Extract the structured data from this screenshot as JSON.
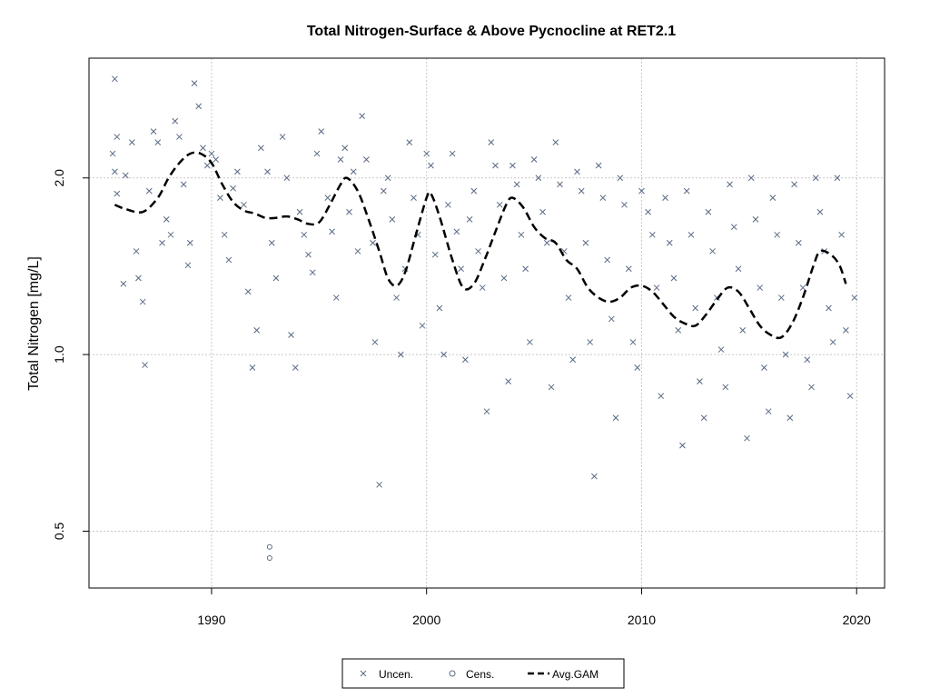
{
  "chart_data": {
    "type": "scatter",
    "title": "Total Nitrogen-Surface & Above Pycnocline at RET2.1",
    "xlabel": "",
    "ylabel": "Total Nitrogen [mg/L]",
    "xlim": [
      1984.3,
      2021.3
    ],
    "ylim": [
      0.4,
      3.2
    ],
    "y_scale": "log",
    "grid": true,
    "x_ticks": [
      {
        "value": 1990,
        "label": "1990"
      },
      {
        "value": 2000,
        "label": "2000"
      },
      {
        "value": 2010,
        "label": "2010"
      },
      {
        "value": 2020,
        "label": "2020"
      }
    ],
    "y_ticks": [
      {
        "value": 0.5,
        "label": "0.5"
      },
      {
        "value": 1.0,
        "label": "1.0"
      },
      {
        "value": 2.0,
        "label": "2.0"
      }
    ],
    "legend": {
      "placement": "bottom-center",
      "entries": [
        {
          "label": "Uncen.",
          "symbol": "x"
        },
        {
          "label": "Cens.",
          "symbol": "o"
        },
        {
          "label": "Avg.GAM",
          "symbol": "dashed-line"
        }
      ]
    },
    "colors": {
      "points": "#5a6a84",
      "gam": "#000000",
      "grid": "#c8c8c8"
    },
    "series": [
      {
        "name": "Uncen.",
        "points": [
          [
            1985.5,
            2.95
          ],
          [
            1985.6,
            2.35
          ],
          [
            1985.4,
            2.2
          ],
          [
            1985.5,
            2.05
          ],
          [
            1985.6,
            1.88
          ],
          [
            1985.9,
            1.32
          ],
          [
            1986.0,
            2.02
          ],
          [
            1986.3,
            2.3
          ],
          [
            1986.5,
            1.5
          ],
          [
            1986.6,
            1.35
          ],
          [
            1986.8,
            1.23
          ],
          [
            1986.9,
            0.96
          ],
          [
            1987.1,
            1.9
          ],
          [
            1987.3,
            2.4
          ],
          [
            1987.5,
            2.3
          ],
          [
            1987.7,
            1.55
          ],
          [
            1987.9,
            1.7
          ],
          [
            1988.1,
            1.6
          ],
          [
            1988.3,
            2.5
          ],
          [
            1988.5,
            2.35
          ],
          [
            1988.7,
            1.95
          ],
          [
            1988.9,
            1.42
          ],
          [
            1989.0,
            1.55
          ],
          [
            1989.2,
            2.9
          ],
          [
            1989.4,
            2.65
          ],
          [
            1989.6,
            2.25
          ],
          [
            1989.8,
            2.1
          ],
          [
            1990.0,
            2.2
          ],
          [
            1990.2,
            2.15
          ],
          [
            1990.4,
            1.85
          ],
          [
            1990.6,
            1.6
          ],
          [
            1990.8,
            1.45
          ],
          [
            1991.0,
            1.92
          ],
          [
            1991.2,
            2.05
          ],
          [
            1991.5,
            1.8
          ],
          [
            1991.7,
            1.28
          ],
          [
            1991.9,
            0.95
          ],
          [
            1992.1,
            1.1
          ],
          [
            1992.3,
            2.25
          ],
          [
            1992.6,
            2.05
          ],
          [
            1992.8,
            1.55
          ],
          [
            1993.0,
            1.35
          ],
          [
            1993.3,
            2.35
          ],
          [
            1993.5,
            2.0
          ],
          [
            1993.7,
            1.08
          ],
          [
            1993.9,
            0.95
          ],
          [
            1994.1,
            1.75
          ],
          [
            1994.3,
            1.6
          ],
          [
            1994.5,
            1.48
          ],
          [
            1994.7,
            1.38
          ],
          [
            1994.9,
            2.2
          ],
          [
            1995.1,
            2.4
          ],
          [
            1995.4,
            1.85
          ],
          [
            1995.6,
            1.62
          ],
          [
            1995.8,
            1.25
          ],
          [
            1996.0,
            2.15
          ],
          [
            1996.2,
            2.25
          ],
          [
            1996.4,
            1.75
          ],
          [
            1996.6,
            2.05
          ],
          [
            1996.8,
            1.5
          ],
          [
            1997.0,
            2.55
          ],
          [
            1997.2,
            2.15
          ],
          [
            1997.5,
            1.55
          ],
          [
            1997.6,
            1.05
          ],
          [
            1997.8,
            0.6
          ],
          [
            1998.0,
            1.9
          ],
          [
            1998.2,
            2.0
          ],
          [
            1998.4,
            1.7
          ],
          [
            1998.6,
            1.25
          ],
          [
            1998.8,
            1.0
          ],
          [
            1999.0,
            1.4
          ],
          [
            1999.2,
            2.3
          ],
          [
            1999.4,
            1.85
          ],
          [
            1999.6,
            1.6
          ],
          [
            1999.8,
            1.12
          ],
          [
            2000.0,
            2.2
          ],
          [
            2000.2,
            2.1
          ],
          [
            2000.4,
            1.48
          ],
          [
            2000.6,
            1.2
          ],
          [
            2000.8,
            1.0
          ],
          [
            2001.0,
            1.8
          ],
          [
            2001.2,
            2.2
          ],
          [
            2001.4,
            1.62
          ],
          [
            2001.6,
            1.4
          ],
          [
            2001.8,
            0.98
          ],
          [
            2002.0,
            1.7
          ],
          [
            2002.2,
            1.9
          ],
          [
            2002.4,
            1.5
          ],
          [
            2002.6,
            1.3
          ],
          [
            2002.8,
            0.8
          ],
          [
            2003.0,
            2.3
          ],
          [
            2003.2,
            2.1
          ],
          [
            2003.4,
            1.8
          ],
          [
            2003.6,
            1.35
          ],
          [
            2003.8,
            0.9
          ],
          [
            2004.0,
            2.1
          ],
          [
            2004.2,
            1.95
          ],
          [
            2004.4,
            1.6
          ],
          [
            2004.6,
            1.4
          ],
          [
            2004.8,
            1.05
          ],
          [
            2005.0,
            2.15
          ],
          [
            2005.2,
            2.0
          ],
          [
            2005.4,
            1.75
          ],
          [
            2005.6,
            1.55
          ],
          [
            2005.8,
            0.88
          ],
          [
            2006.0,
            2.3
          ],
          [
            2006.2,
            1.95
          ],
          [
            2006.4,
            1.5
          ],
          [
            2006.6,
            1.25
          ],
          [
            2006.8,
            0.98
          ],
          [
            2007.0,
            2.05
          ],
          [
            2007.2,
            1.9
          ],
          [
            2007.4,
            1.55
          ],
          [
            2007.6,
            1.05
          ],
          [
            2007.8,
            0.62
          ],
          [
            2008.0,
            2.1
          ],
          [
            2008.2,
            1.85
          ],
          [
            2008.4,
            1.45
          ],
          [
            2008.6,
            1.15
          ],
          [
            2008.8,
            0.78
          ],
          [
            2009.0,
            2.0
          ],
          [
            2009.2,
            1.8
          ],
          [
            2009.4,
            1.4
          ],
          [
            2009.6,
            1.05
          ],
          [
            2009.8,
            0.95
          ],
          [
            2010.0,
            1.9
          ],
          [
            2010.3,
            1.75
          ],
          [
            2010.5,
            1.6
          ],
          [
            2010.7,
            1.3
          ],
          [
            2010.9,
            0.85
          ],
          [
            2011.1,
            1.85
          ],
          [
            2011.3,
            1.55
          ],
          [
            2011.5,
            1.35
          ],
          [
            2011.7,
            1.1
          ],
          [
            2011.9,
            0.7
          ],
          [
            2012.1,
            1.9
          ],
          [
            2012.3,
            1.6
          ],
          [
            2012.5,
            1.2
          ],
          [
            2012.7,
            0.9
          ],
          [
            2012.9,
            0.78
          ],
          [
            2013.1,
            1.75
          ],
          [
            2013.3,
            1.5
          ],
          [
            2013.5,
            1.25
          ],
          [
            2013.7,
            1.02
          ],
          [
            2013.9,
            0.88
          ],
          [
            2014.1,
            1.95
          ],
          [
            2014.3,
            1.65
          ],
          [
            2014.5,
            1.4
          ],
          [
            2014.7,
            1.1
          ],
          [
            2014.9,
            0.72
          ],
          [
            2015.1,
            2.0
          ],
          [
            2015.3,
            1.7
          ],
          [
            2015.5,
            1.3
          ],
          [
            2015.7,
            0.95
          ],
          [
            2015.9,
            0.8
          ],
          [
            2016.1,
            1.85
          ],
          [
            2016.3,
            1.6
          ],
          [
            2016.5,
            1.25
          ],
          [
            2016.7,
            1.0
          ],
          [
            2016.9,
            0.78
          ],
          [
            2017.1,
            1.95
          ],
          [
            2017.3,
            1.55
          ],
          [
            2017.5,
            1.3
          ],
          [
            2017.7,
            0.98
          ],
          [
            2017.9,
            0.88
          ],
          [
            2018.1,
            2.0
          ],
          [
            2018.3,
            1.75
          ],
          [
            2018.5,
            1.5
          ],
          [
            2018.7,
            1.2
          ],
          [
            2018.9,
            1.05
          ],
          [
            2019.1,
            2.0
          ],
          [
            2019.3,
            1.6
          ],
          [
            2019.5,
            1.1
          ],
          [
            2019.7,
            0.85
          ],
          [
            2019.9,
            1.25
          ]
        ]
      },
      {
        "name": "Cens.",
        "points": [
          [
            1992.7,
            0.47
          ],
          [
            1992.7,
            0.45
          ]
        ]
      },
      {
        "name": "Avg.GAM",
        "points": [
          [
            1985.5,
            1.8
          ],
          [
            1986.0,
            1.77
          ],
          [
            1986.8,
            1.75
          ],
          [
            1987.5,
            1.85
          ],
          [
            1988.0,
            2.0
          ],
          [
            1988.5,
            2.12
          ],
          [
            1989.0,
            2.2
          ],
          [
            1989.5,
            2.2
          ],
          [
            1990.0,
            2.12
          ],
          [
            1990.5,
            1.95
          ],
          [
            1991.0,
            1.82
          ],
          [
            1991.5,
            1.76
          ],
          [
            1992.0,
            1.74
          ],
          [
            1992.5,
            1.71
          ],
          [
            1993.0,
            1.71
          ],
          [
            1993.5,
            1.72
          ],
          [
            1994.0,
            1.7
          ],
          [
            1994.5,
            1.67
          ],
          [
            1995.0,
            1.68
          ],
          [
            1995.5,
            1.8
          ],
          [
            1996.0,
            1.95
          ],
          [
            1996.3,
            2.0
          ],
          [
            1996.8,
            1.9
          ],
          [
            1997.3,
            1.7
          ],
          [
            1997.8,
            1.5
          ],
          [
            1998.2,
            1.35
          ],
          [
            1998.6,
            1.31
          ],
          [
            1999.0,
            1.38
          ],
          [
            1999.5,
            1.6
          ],
          [
            2000.0,
            1.85
          ],
          [
            2000.2,
            1.88
          ],
          [
            2000.6,
            1.72
          ],
          [
            2001.2,
            1.45
          ],
          [
            2001.7,
            1.3
          ],
          [
            2002.2,
            1.32
          ],
          [
            2002.7,
            1.45
          ],
          [
            2003.2,
            1.62
          ],
          [
            2003.7,
            1.8
          ],
          [
            2004.0,
            1.85
          ],
          [
            2004.5,
            1.78
          ],
          [
            2005.0,
            1.65
          ],
          [
            2005.5,
            1.58
          ],
          [
            2006.0,
            1.55
          ],
          [
            2006.5,
            1.45
          ],
          [
            2007.0,
            1.4
          ],
          [
            2007.5,
            1.3
          ],
          [
            2008.0,
            1.25
          ],
          [
            2008.5,
            1.23
          ],
          [
            2009.0,
            1.25
          ],
          [
            2009.5,
            1.3
          ],
          [
            2010.0,
            1.31
          ],
          [
            2010.5,
            1.28
          ],
          [
            2011.0,
            1.22
          ],
          [
            2011.5,
            1.16
          ],
          [
            2012.0,
            1.13
          ],
          [
            2012.5,
            1.12
          ],
          [
            2013.0,
            1.17
          ],
          [
            2013.5,
            1.24
          ],
          [
            2014.0,
            1.3
          ],
          [
            2014.5,
            1.28
          ],
          [
            2015.0,
            1.2
          ],
          [
            2015.5,
            1.12
          ],
          [
            2016.0,
            1.08
          ],
          [
            2016.5,
            1.07
          ],
          [
            2017.0,
            1.13
          ],
          [
            2017.5,
            1.25
          ],
          [
            2018.0,
            1.42
          ],
          [
            2018.3,
            1.5
          ],
          [
            2018.8,
            1.48
          ],
          [
            2019.2,
            1.42
          ],
          [
            2019.5,
            1.32
          ]
        ]
      }
    ]
  }
}
